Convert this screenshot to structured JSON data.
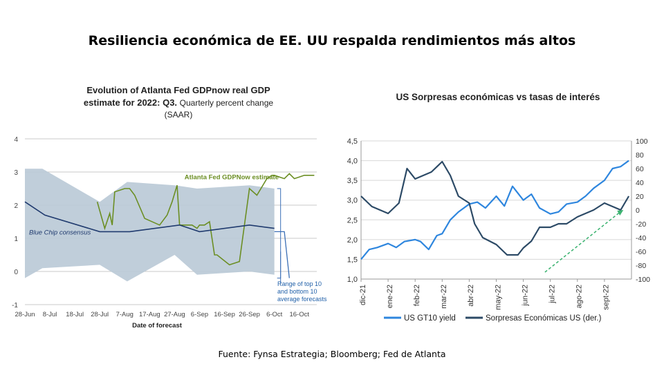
{
  "slide": {
    "title": "Resiliencia económica de EE. UU respalda rendimientos más altos",
    "source": "Fuente: Fynsa Estrategia; Bloomberg; Fed de Atlanta"
  },
  "chart_data": [
    {
      "type": "line",
      "title_bold": "Evolution of Atlanta Fed GDPnow real GDP estimate for 2022: Q3.",
      "title_rest": "Quarterly percent change (SAAR)",
      "title_lines": [
        "Evolution of Atlanta Fed GDPnow real GDP",
        "estimate for 2022: Q3.",
        "Quarterly percent change",
        "(SAAR)"
      ],
      "xlabel": "Date of forecast",
      "ylabel": "",
      "ylim": [
        -1,
        4
      ],
      "yticks": [
        "4",
        "3",
        "2",
        "1",
        "0",
        "-1"
      ],
      "grid": true,
      "x_ticks": [
        "28-Jun",
        "8-Jul",
        "18-Jul",
        "28-Jul",
        "7-Aug",
        "17-Aug",
        "27-Aug",
        "6-Sep",
        "16-Sep",
        "26-Sep",
        "6-Oct",
        "16-Oct"
      ],
      "x_tick_days": [
        0,
        10,
        20,
        30,
        40,
        50,
        60,
        70,
        80,
        90,
        100,
        110
      ],
      "band": {
        "name": "Range of top 10 and bottom 10 average forecasts",
        "days": [
          0,
          7,
          30,
          41,
          60,
          69,
          90,
          100
        ],
        "upper": [
          3.1,
          3.1,
          2.1,
          2.7,
          2.6,
          2.5,
          2.6,
          2.5
        ],
        "lower": [
          -0.2,
          0.1,
          0.2,
          -0.3,
          0.5,
          -0.1,
          0.0,
          -0.1
        ]
      },
      "series": [
        {
          "name": "Atlanta Fed GDPNow estimate",
          "color": "#6b8e23",
          "days": [
            29,
            32,
            34,
            35,
            36,
            40,
            42,
            44,
            48,
            54,
            57,
            59,
            61,
            62,
            67,
            69,
            70,
            72,
            74,
            76,
            77,
            82,
            86,
            90,
            93,
            97,
            99,
            100,
            102,
            104,
            106,
            108,
            110,
            112,
            114,
            116
          ],
          "values": [
            2.1,
            1.3,
            1.75,
            1.4,
            2.4,
            2.5,
            2.5,
            2.3,
            1.6,
            1.4,
            1.7,
            2.1,
            2.6,
            1.4,
            1.4,
            1.3,
            1.4,
            1.4,
            1.5,
            0.5,
            0.5,
            0.2,
            0.3,
            2.5,
            2.3,
            2.8,
            2.9,
            2.9,
            2.85,
            2.8,
            2.95,
            2.8,
            2.85,
            2.9,
            2.9,
            2.9
          ]
        },
        {
          "name": "Blue Chip consensus",
          "color": "#1f3a6e",
          "days": [
            0,
            8,
            30,
            42,
            62,
            70,
            90,
            100
          ],
          "values": [
            2.1,
            1.7,
            1.2,
            1.2,
            1.4,
            1.2,
            1.4,
            1.3
          ]
        }
      ],
      "extra_line": {
        "color": "#3b6fb6",
        "days": [
          100,
          104,
          106
        ],
        "values": [
          1.2,
          1.2,
          -0.2
        ]
      }
    },
    {
      "type": "line",
      "title": "US Sorpresas económicas vs tasas de interés",
      "x_ticks": [
        "dic-21",
        "ene-22",
        "feb-22",
        "mar-22",
        "abr-22",
        "may-22",
        "jun-22",
        "jul-22",
        "ago-22",
        "sept-22"
      ],
      "ylim_left": [
        1.0,
        4.5
      ],
      "yticks_left": [
        "4,5",
        "4,0",
        "3,5",
        "3,0",
        "2,5",
        "2,0",
        "1,5",
        "1,0"
      ],
      "ylim_right": [
        -100,
        100
      ],
      "yticks_right": [
        "100",
        "80",
        "60",
        "40",
        "20",
        "0",
        "-20",
        "-40",
        "-60",
        "-80",
        "-100"
      ],
      "grid": true,
      "legend_position": "bottom",
      "series": [
        {
          "name": "US GT10 yield",
          "axis": "left",
          "color": "#2e86de",
          "months": [
            0,
            0.3,
            0.6,
            1.0,
            1.3,
            1.6,
            2.0,
            2.2,
            2.5,
            2.8,
            3.0,
            3.3,
            3.6,
            4.0,
            4.3,
            4.6,
            5.0,
            5.3,
            5.6,
            6.0,
            6.3,
            6.6,
            7.0,
            7.3,
            7.6,
            8.0,
            8.3,
            8.6,
            9.0,
            9.3,
            9.6,
            9.9
          ],
          "values": [
            1.5,
            1.75,
            1.8,
            1.9,
            1.8,
            1.95,
            2.0,
            1.95,
            1.75,
            2.1,
            2.15,
            2.5,
            2.7,
            2.9,
            2.95,
            2.8,
            3.1,
            2.85,
            3.35,
            3.0,
            3.15,
            2.8,
            2.65,
            2.7,
            2.9,
            2.95,
            3.1,
            3.3,
            3.5,
            3.8,
            3.85,
            4.0
          ]
        },
        {
          "name": "Sorpresas Económicas US (der.)",
          "axis": "right",
          "color": "#2c4a66",
          "months": [
            0,
            0.4,
            0.7,
            1.0,
            1.4,
            1.7,
            2.0,
            2.3,
            2.6,
            3.0,
            3.3,
            3.6,
            4.0,
            4.2,
            4.5,
            5.0,
            5.4,
            5.8,
            6.0,
            6.3,
            6.6,
            7.0,
            7.3,
            7.6,
            8.0,
            8.3,
            8.6,
            9.0,
            9.3,
            9.6,
            9.9
          ],
          "values": [
            20,
            5,
            0,
            -5,
            10,
            60,
            45,
            50,
            55,
            70,
            50,
            20,
            10,
            -20,
            -40,
            -50,
            -65,
            -65,
            -55,
            -45,
            -25,
            -25,
            -20,
            -20,
            -10,
            -5,
            0,
            10,
            5,
            0,
            20
          ]
        }
      ],
      "trend_arrow": {
        "color": "#3cb371",
        "from": [
          6.8,
          -90
        ],
        "to": [
          9.7,
          0
        ]
      }
    }
  ]
}
